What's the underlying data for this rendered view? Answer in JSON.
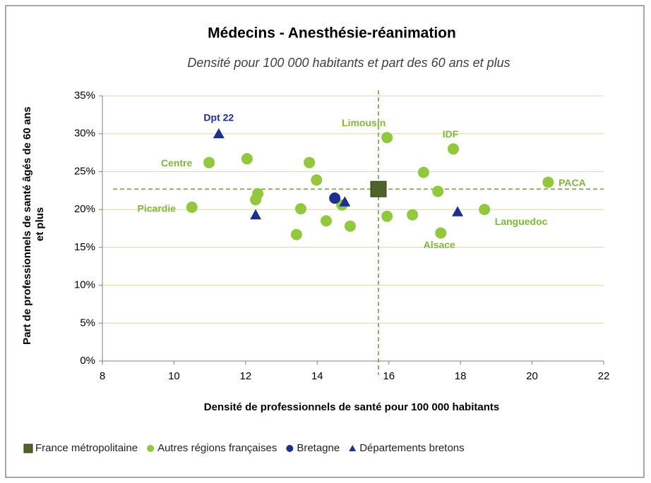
{
  "chart_data": {
    "type": "scatter",
    "title": "Médecins - Anesthésie-réanimation",
    "subtitle": "Densité pour 100 000 habitants et part des 60 ans et plus",
    "x_label": "Densité de professionnels de santé pour 100 000 habitants",
    "y_label": "Part de professionnels de santé âgés de 60 ans et plus",
    "xlim": [
      8,
      22
    ],
    "xticks": [
      8,
      10,
      12,
      14,
      16,
      18,
      20,
      22
    ],
    "ylim": [
      0,
      35
    ],
    "yticks": [
      {
        "value": 0,
        "label": "0%"
      },
      {
        "value": 5,
        "label": "5%"
      },
      {
        "value": 10,
        "label": "10%"
      },
      {
        "value": 15,
        "label": "15%"
      },
      {
        "value": 20,
        "label": "20%"
      },
      {
        "value": 25,
        "label": "25%"
      },
      {
        "value": 30,
        "label": "30%"
      },
      {
        "value": 35,
        "label": "35%"
      }
    ],
    "grid": true,
    "legend": "bottom",
    "series": [
      {
        "name": "France métropolitaine",
        "color": "#4f6228",
        "marker": "square",
        "x": [
          15.71
        ],
        "values": [
          22.7
        ],
        "labels": [
          null
        ]
      },
      {
        "name": "Autres régions françaises",
        "color": "#92c83e",
        "marker": "circle",
        "x": [
          10.98,
          10.5,
          12.04,
          12.28,
          12.34,
          13.42,
          13.54,
          13.78,
          13.98,
          14.25,
          14.69,
          14.92,
          15.95,
          15.95,
          16.66,
          16.97,
          17.37,
          17.45,
          17.8,
          18.67,
          20.45
        ],
        "values": [
          26.2,
          20.3,
          26.7,
          21.3,
          22.1,
          16.7,
          20.1,
          26.2,
          23.9,
          18.5,
          20.6,
          17.8,
          29.5,
          19.1,
          19.3,
          24.9,
          22.4,
          16.9,
          28.0,
          20.0,
          23.6
        ],
        "labels": [
          "Centre",
          "Picardie",
          null,
          null,
          null,
          null,
          null,
          null,
          null,
          null,
          null,
          null,
          "Limousin",
          null,
          null,
          null,
          null,
          "Alsace",
          "IDF",
          "Languedoc",
          "PACA"
        ]
      },
      {
        "name": "Bretagne",
        "color": "#1f2f8f",
        "marker": "circle",
        "x": [
          14.49
        ],
        "values": [
          21.5
        ],
        "labels": [
          null
        ]
      },
      {
        "name": "Départements bretons",
        "color": "#1f2f8f",
        "marker": "triangle",
        "x": [
          11.25,
          12.28,
          14.77,
          17.92
        ],
        "values": [
          30.0,
          19.3,
          21.0,
          19.7
        ],
        "labels": [
          "Dpt 22",
          null,
          null,
          null
        ]
      }
    ]
  }
}
